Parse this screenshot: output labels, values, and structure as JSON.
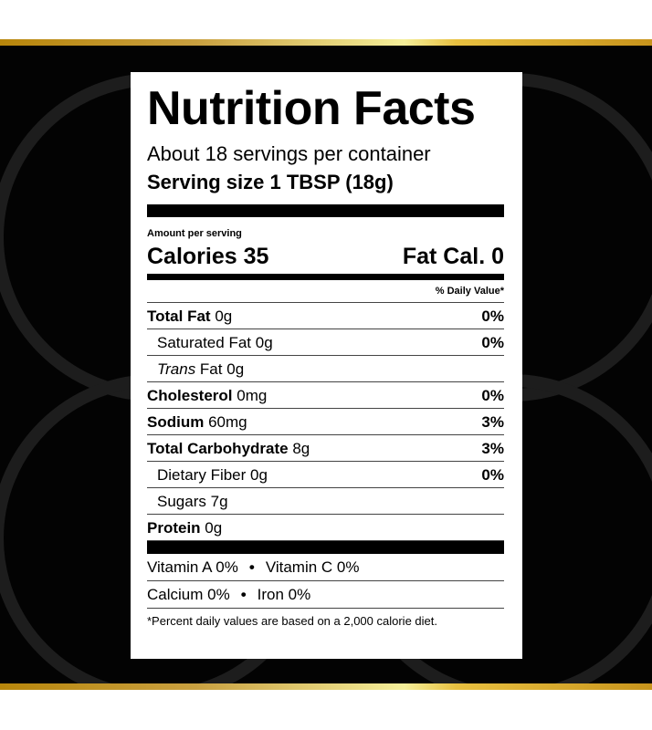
{
  "title": "Nutrition Facts",
  "servings": "About 18 servings per container",
  "serving_size": "Serving size 1 TBSP (18g)",
  "amount_per_serving": "Amount per serving",
  "calories": "Calories 35",
  "fat_calories": "Fat Cal. 0",
  "daily_value_header": "% Daily Value*",
  "nutrients": [
    {
      "name": "Total Fat",
      "amount": "0g",
      "dv": "0%",
      "bold": true
    },
    {
      "name": "Saturated Fat",
      "amount": "0g",
      "dv": "0%",
      "indent": true
    },
    {
      "name": "Trans",
      "name_suffix": " Fat",
      "amount": "0g",
      "dv": "",
      "indent": true
    },
    {
      "name": "Cholesterol",
      "amount": "0mg",
      "dv": "0%",
      "bold": true
    },
    {
      "name": "Sodium",
      "amount": "60mg",
      "dv": "3%",
      "bold": true
    },
    {
      "name": "Total Carbohydrate",
      "amount": "8g",
      "dv": "3%",
      "bold": true
    },
    {
      "name": "Dietary Fiber",
      "amount": "0g",
      "dv": "0%",
      "indent": true
    },
    {
      "name": "Sugars",
      "amount": "7g",
      "dv": "",
      "indent": true
    },
    {
      "name": "Protein",
      "amount": "0g",
      "dv": "",
      "bold": true
    }
  ],
  "vitamins": [
    [
      "Vitamin A 0%",
      "Vitamin C 0%"
    ],
    [
      "Calcium 0%",
      "Iron 0%"
    ]
  ],
  "bullet": "•",
  "footnote": "*Percent daily values are based on a 2,000 calorie diet.",
  "colors": {
    "gold": "#d4a830",
    "background": "#030303"
  }
}
